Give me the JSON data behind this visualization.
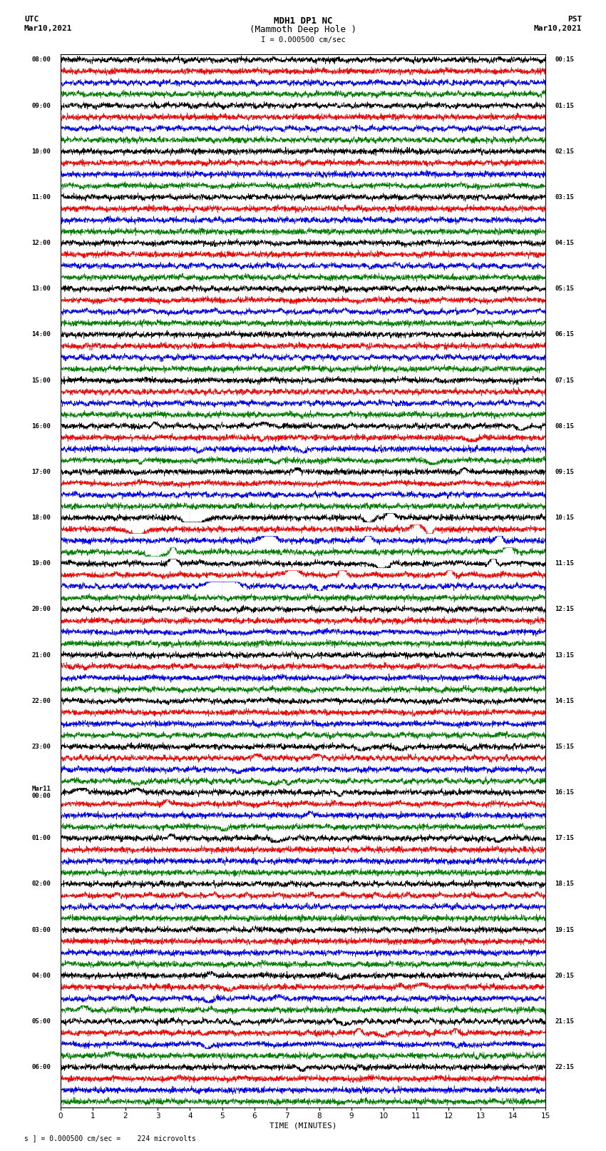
{
  "title_line1": "MDH1 DP1 NC",
  "title_line2": "(Mammoth Deep Hole )",
  "title_line3": "I = 0.000500 cm/sec",
  "label_utc": "UTC",
  "label_date_left": "Mar10,2021",
  "label_pst": "PST",
  "label_date_right": "Mar10,2021",
  "xlabel": "TIME (MINUTES)",
  "footer": "s ] = 0.000500 cm/sec =    224 microvolts",
  "colors": [
    "black",
    "red",
    "blue",
    "green"
  ],
  "n_rows": 92,
  "bg_color": "white",
  "left_times": [
    "08:00",
    "09:00",
    "10:00",
    "11:00",
    "12:00",
    "13:00",
    "14:00",
    "15:00",
    "16:00",
    "17:00",
    "18:00",
    "19:00",
    "20:00",
    "21:00",
    "22:00",
    "23:00",
    "Mar11\n00:00",
    "01:00",
    "02:00",
    "03:00",
    "04:00",
    "05:00",
    "06:00"
  ],
  "right_times": [
    "00:15",
    "01:15",
    "02:15",
    "03:15",
    "04:15",
    "05:15",
    "06:15",
    "07:15",
    "08:15",
    "09:15",
    "10:15",
    "11:15",
    "12:15",
    "13:15",
    "14:15",
    "15:15",
    "16:15",
    "17:15",
    "18:15",
    "19:15",
    "20:15",
    "21:15",
    "22:15"
  ],
  "event_rows_large": [
    40,
    41,
    42,
    43,
    44,
    45,
    46
  ],
  "event_rows_medium": [
    32,
    33,
    34,
    35,
    36,
    60,
    61,
    62,
    63,
    64,
    65,
    66,
    67,
    68,
    80,
    81,
    82,
    83,
    84,
    85,
    86,
    87,
    88
  ]
}
